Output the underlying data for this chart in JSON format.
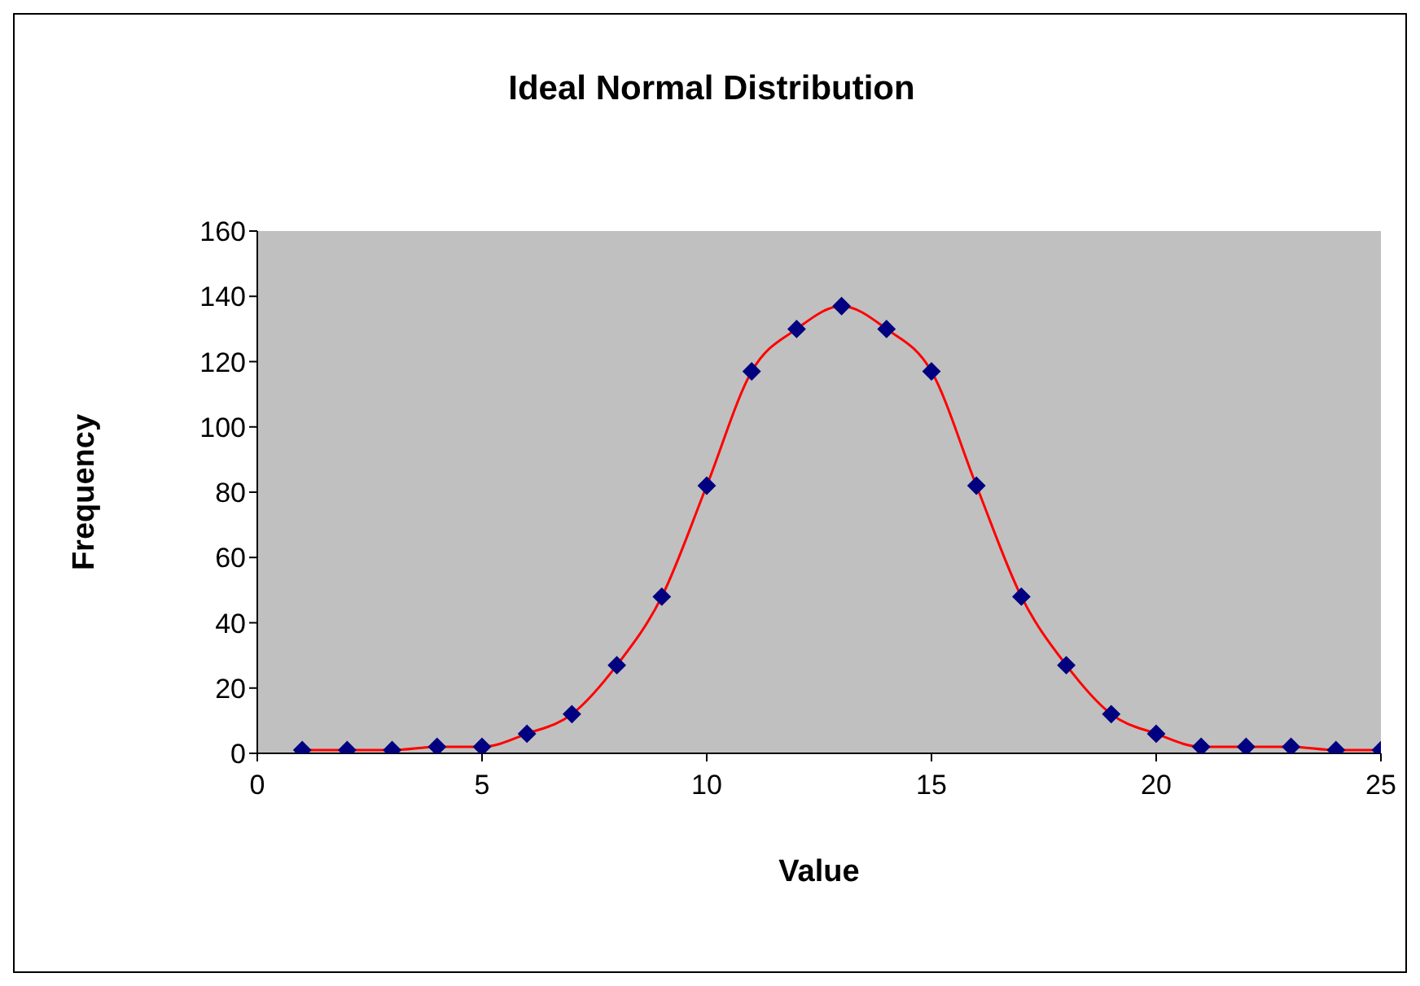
{
  "chart_data": {
    "type": "line",
    "title": "Ideal Normal Distribution",
    "xlabel": "Value",
    "ylabel": "Frequency",
    "x": [
      1,
      2,
      3,
      4,
      5,
      6,
      7,
      8,
      9,
      10,
      11,
      12,
      13,
      14,
      15,
      16,
      17,
      18,
      19,
      20,
      21,
      22,
      23,
      24,
      25
    ],
    "series": [
      {
        "color": "#ff0000",
        "values": [
          1,
          1,
          1,
          2,
          2,
          6,
          12,
          27,
          48,
          82,
          117,
          130,
          137,
          130,
          117,
          82,
          48,
          27,
          12,
          6,
          2,
          2,
          2,
          1,
          1
        ]
      }
    ],
    "xlim": [
      0,
      25
    ],
    "xticks": [
      0,
      5,
      10,
      15,
      20,
      25
    ],
    "ylim": [
      0,
      160
    ],
    "yticks": [
      0,
      20,
      40,
      60,
      80,
      100,
      120,
      140,
      160
    ],
    "marker": "diamond",
    "line_style": "solid",
    "grid": false
  }
}
